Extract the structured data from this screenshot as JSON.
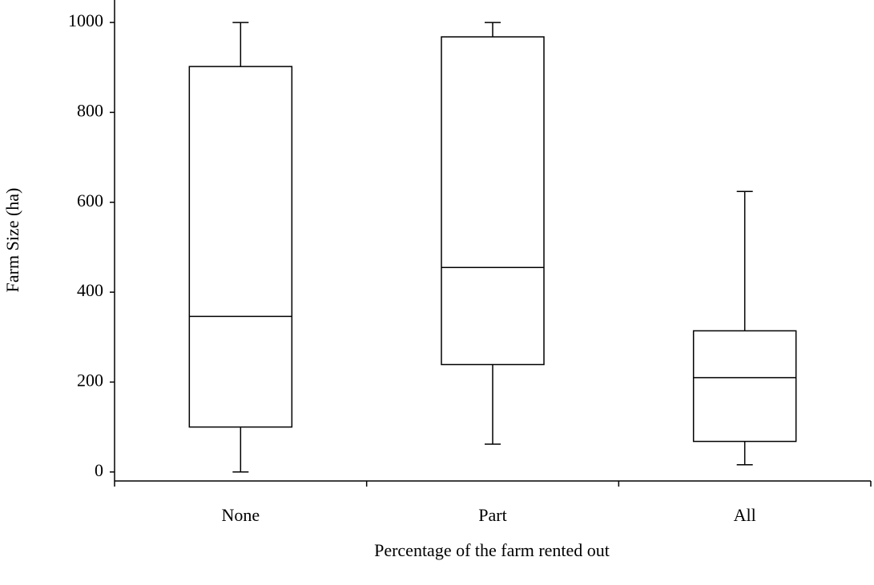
{
  "chart_data": {
    "type": "box",
    "x_label": "Percentage of the farm rented out",
    "y_label": "Farm Size (ha)",
    "categories": [
      "None",
      "Part",
      "All"
    ],
    "boxes": [
      {
        "min": 0,
        "q1": 100,
        "median": 346,
        "q3": 902,
        "max": 1000
      },
      {
        "min": 62,
        "q1": 239,
        "median": 455,
        "q3": 968,
        "max": 1000
      },
      {
        "min": 16,
        "q1": 68,
        "median": 210,
        "q3": 314,
        "max": 624
      }
    ],
    "ylim": [
      -20,
      1050
    ],
    "yticks": [
      0,
      200,
      400,
      600,
      800,
      1000
    ]
  }
}
